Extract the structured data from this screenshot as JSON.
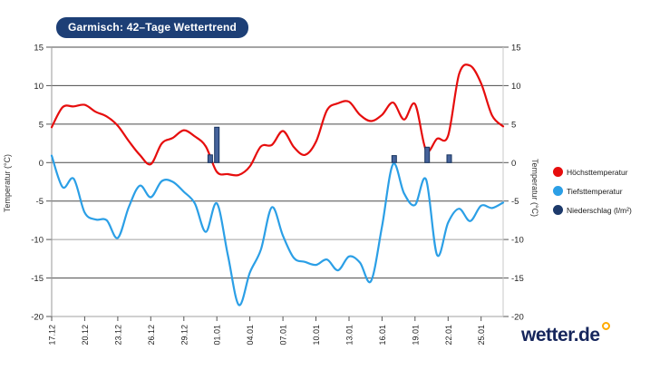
{
  "page": {
    "background": "#ffffff"
  },
  "title_badge": {
    "text": "Garmisch: 42–Tage Wettertrend",
    "bg_color": "#1d3f76",
    "text_color": "#ffffff"
  },
  "branding": {
    "logo_text": "wetter.de",
    "logo_color": "#16265c",
    "degree_dot_color": "#ffab00"
  },
  "legend": {
    "items": [
      {
        "label": "Höchsttemperatur",
        "color": "#e60d0d"
      },
      {
        "label": "Tiefsttemperatur",
        "color": "#2b9fe6"
      },
      {
        "label": "Niederschlag (l/m²)",
        "color": "#1d3a6b"
      }
    ]
  },
  "chart_data": {
    "type": "line+bar",
    "title": "Garmisch: 42–Tage Wettertrend",
    "ylabel_left": "Temperatur (°C)",
    "ylabel_right": "Temperatur (°C)",
    "ylim": [
      -20,
      15
    ],
    "y_ticks": [
      15,
      10,
      5,
      0,
      -5,
      -10,
      -15,
      -20
    ],
    "light_gridlines": [
      -10,
      -20
    ],
    "x_tick_labels": [
      "17.12",
      "20.12",
      "23.12",
      "26.12",
      "29.12",
      "01.01",
      "04.01",
      "07.01",
      "10.01",
      "13.01",
      "16.01",
      "19.01",
      "22.01",
      "25.01"
    ],
    "x_tick_days": [
      0,
      3,
      6,
      9,
      12,
      15,
      18,
      21,
      24,
      27,
      30,
      33,
      36,
      39
    ],
    "days_total": 42,
    "grid_color": "#4a4a4a",
    "grid_color_light": "#a0a0a0",
    "border_color": "#9a9a9a",
    "series": [
      {
        "name": "Höchsttemperatur",
        "color": "#e60d0d",
        "values": [
          4.6,
          7.2,
          7.3,
          7.5,
          6.6,
          6.0,
          4.8,
          2.8,
          1.0,
          -0.2,
          2.5,
          3.2,
          4.2,
          3.4,
          2.1,
          -1.2,
          -1.5,
          -1.6,
          -0.5,
          2.1,
          2.3,
          4.1,
          2.0,
          1.0,
          2.7,
          6.8,
          7.7,
          7.9,
          6.2,
          5.4,
          6.2,
          7.8,
          5.6,
          7.6,
          1.6,
          3.1,
          3.5,
          11.5,
          12.6,
          10.3,
          6.1,
          4.7
        ]
      },
      {
        "name": "Tiefsttemperatur",
        "color": "#2b9fe6",
        "values": [
          0.9,
          -3.2,
          -2.1,
          -6.5,
          -7.4,
          -7.5,
          -9.8,
          -5.8,
          -3.0,
          -4.5,
          -2.4,
          -2.5,
          -3.8,
          -5.3,
          -9.0,
          -5.3,
          -12.0,
          -18.5,
          -14.3,
          -11.3,
          -5.8,
          -9.5,
          -12.4,
          -12.9,
          -13.3,
          -12.6,
          -14.0,
          -12.2,
          -13.0,
          -15.4,
          -8.3,
          -0.2,
          -4.0,
          -5.5,
          -2.2,
          -12.0,
          -7.8,
          -6.0,
          -7.6,
          -5.6,
          -5.9,
          -5.2
        ]
      }
    ],
    "bars": {
      "name": "Niederschlag (l/m²)",
      "fill": "#46639b",
      "stroke": "#16335e",
      "points": [
        {
          "date": "31.12",
          "day": 14.4,
          "value": 1.0
        },
        {
          "date": "01.01",
          "day": 15.0,
          "value": 4.6
        },
        {
          "date": "17.01",
          "day": 31.1,
          "value": 0.9
        },
        {
          "date": "20.01",
          "day": 34.1,
          "value": 2.0
        },
        {
          "date": "22.01",
          "day": 36.1,
          "value": 1.0
        }
      ]
    }
  }
}
